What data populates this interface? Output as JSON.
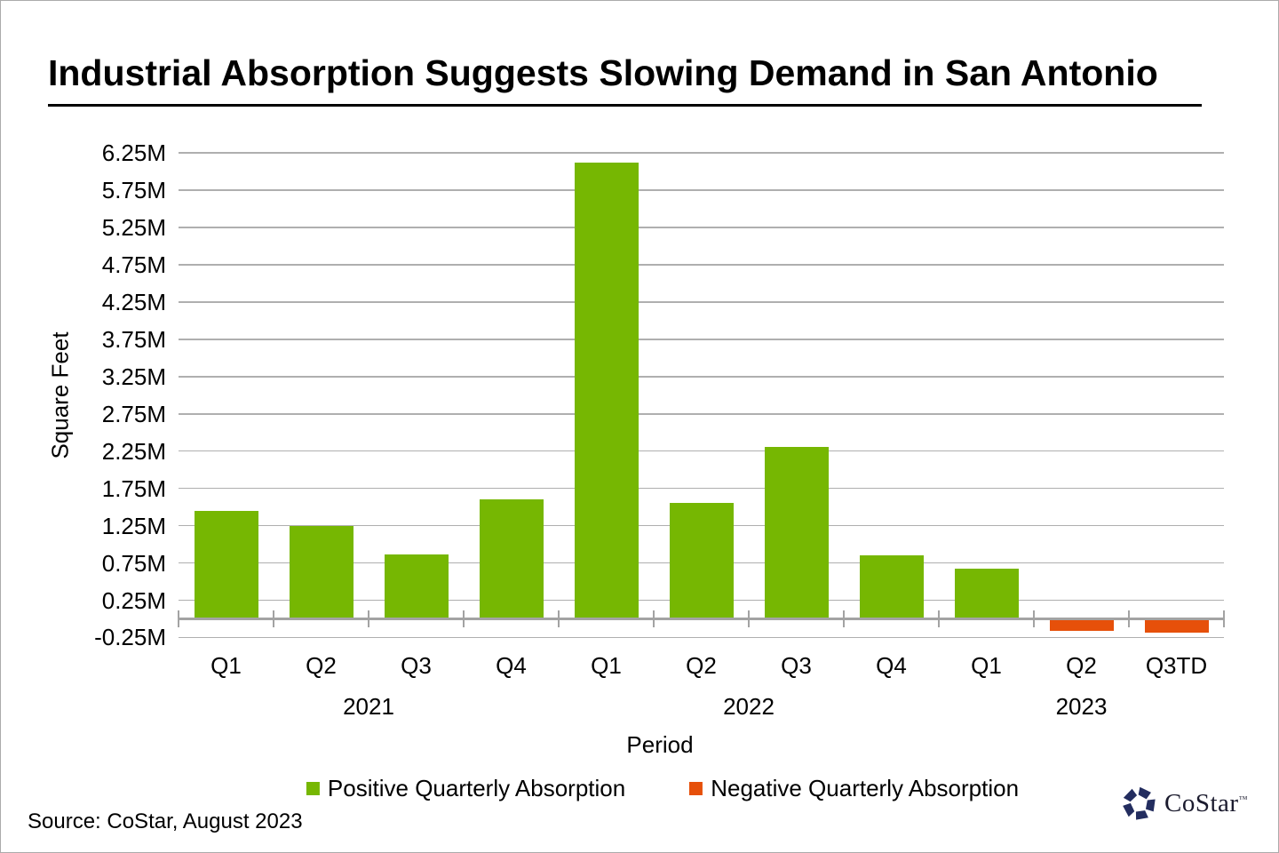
{
  "header": {
    "title": "Industrial Absorption Suggests Slowing Demand in San Antonio"
  },
  "chart_data": {
    "type": "bar",
    "title": "Industrial Absorption Suggests Slowing Demand in San Antonio",
    "xlabel": "Period",
    "ylabel": "Square Feet",
    "unit": "millions of square feet",
    "categories": [
      "Q1",
      "Q2",
      "Q3",
      "Q4",
      "Q1",
      "Q2",
      "Q3",
      "Q4",
      "Q1",
      "Q2",
      "Q3TD"
    ],
    "year_groups": [
      {
        "label": "2021",
        "start": 0,
        "end": 3
      },
      {
        "label": "2022",
        "start": 4,
        "end": 7
      },
      {
        "label": "2023",
        "start": 8,
        "end": 10
      }
    ],
    "values": [
      1.45,
      1.25,
      0.87,
      1.6,
      6.12,
      1.55,
      2.31,
      0.85,
      0.67,
      -0.14,
      -0.17
    ],
    "y_ticks": [
      "6.25M",
      "5.75M",
      "5.25M",
      "4.75M",
      "4.25M",
      "3.75M",
      "3.25M",
      "2.75M",
      "2.25M",
      "1.75M",
      "1.25M",
      "0.75M",
      "0.25M",
      "-0.25M"
    ],
    "ylim": [
      -0.25,
      6.25
    ],
    "grid": "horizontal",
    "legend_position": "bottom",
    "colors": {
      "positive": "#76B702",
      "negative": "#E6500A",
      "gridline": "#AFAFAF",
      "axis": "#A3A3A3"
    },
    "legend": [
      {
        "label": "Positive Quarterly Absorption",
        "color": "#76B702"
      },
      {
        "label": "Negative Quarterly Absorption",
        "color": "#E6500A"
      }
    ]
  },
  "footer": {
    "source": "Source: CoStar, August 2023",
    "logo_text": "CoStar",
    "logo_tm": "™"
  }
}
